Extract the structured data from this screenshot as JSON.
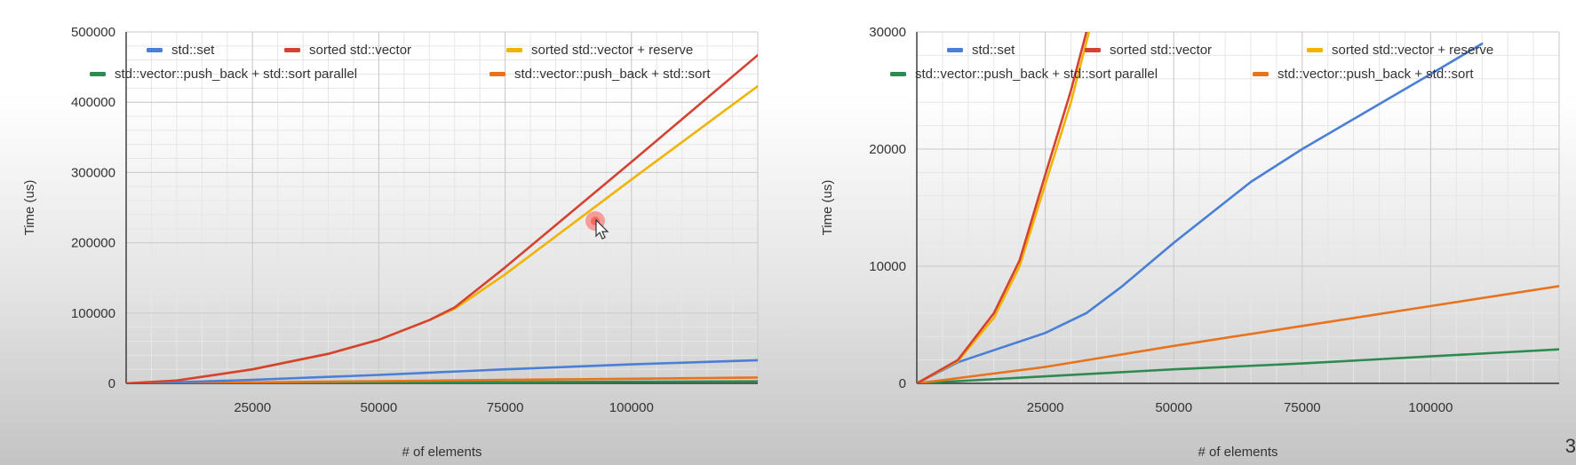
{
  "chart_data": [
    {
      "type": "line",
      "title": "",
      "xlabel": "# of elements",
      "ylabel": "Time (us)",
      "xlim": [
        0,
        125000
      ],
      "ylim": [
        0,
        500000
      ],
      "x_ticks": [
        25000,
        50000,
        75000,
        100000
      ],
      "x_tick_labels": [
        "25000",
        "50000",
        "75000",
        "100000"
      ],
      "y_ticks": [
        0,
        100000,
        200000,
        300000,
        400000,
        500000
      ],
      "y_tick_labels": [
        "0",
        "100000",
        "200000",
        "300000",
        "400000",
        "500000"
      ],
      "grid": true,
      "legend_position": "top-left",
      "series": [
        {
          "name": "std::set",
          "color": "#4a7fd6",
          "x": [
            0,
            10000,
            25000,
            50000,
            75000,
            100000,
            125000
          ],
          "y": [
            0,
            1500,
            5000,
            12000,
            20000,
            27000,
            33000
          ]
        },
        {
          "name": "sorted std::vector",
          "color": "#d44232",
          "x": [
            0,
            10000,
            25000,
            40000,
            50000,
            60000,
            65000,
            75000,
            100000,
            125000
          ],
          "y": [
            0,
            4000,
            20000,
            42000,
            62000,
            90000,
            108000,
            165000,
            315000,
            467000
          ]
        },
        {
          "name": "sorted std::vector + reserve",
          "color": "#f0b400",
          "x": [
            0,
            10000,
            25000,
            40000,
            50000,
            60000,
            65000,
            75000,
            100000,
            125000
          ],
          "y": [
            0,
            4000,
            20000,
            42000,
            62000,
            90000,
            106000,
            155000,
            290000,
            423000
          ]
        },
        {
          "name": "std::vector::push_back + std::sort parallel",
          "color": "#2e8b50",
          "x": [
            0,
            25000,
            50000,
            75000,
            100000,
            125000
          ],
          "y": [
            0,
            600,
            1200,
            1700,
            2300,
            2900
          ]
        },
        {
          "name": "std::vector::push_back + std::sort",
          "color": "#e8731e",
          "x": [
            0,
            25000,
            50000,
            75000,
            100000,
            125000
          ],
          "y": [
            0,
            1400,
            3200,
            4900,
            6600,
            8300
          ]
        }
      ]
    },
    {
      "type": "line",
      "title": "",
      "xlabel": "# of elements",
      "ylabel": "Time (us)",
      "xlim": [
        0,
        125000
      ],
      "ylim": [
        0,
        30000
      ],
      "x_ticks": [
        25000,
        50000,
        75000,
        100000
      ],
      "x_tick_labels": [
        "25000",
        "50000",
        "75000",
        "100000"
      ],
      "y_ticks": [
        0,
        10000,
        20000,
        30000
      ],
      "y_tick_labels": [
        "0",
        "10000",
        "20000",
        "30000"
      ],
      "grid": true,
      "legend_position": "top-left",
      "series": [
        {
          "name": "std::set",
          "color": "#4a7fd6",
          "x": [
            0,
            8000,
            25000,
            33000,
            40000,
            50000,
            65000,
            75000,
            100000,
            110000
          ],
          "y": [
            0,
            1800,
            4300,
            6000,
            8300,
            12000,
            17200,
            20000,
            26400,
            29000
          ]
        },
        {
          "name": "sorted std::vector",
          "color": "#d44232",
          "x": [
            0,
            8000,
            15000,
            20000,
            25000,
            30000,
            33000
          ],
          "y": [
            0,
            2000,
            6000,
            10500,
            17800,
            25000,
            30000
          ]
        },
        {
          "name": "sorted std::vector + reserve",
          "color": "#f0b400",
          "x": [
            0,
            8000,
            15000,
            20000,
            25000,
            30000,
            33500
          ],
          "y": [
            0,
            1900,
            5600,
            10000,
            17000,
            24000,
            30000
          ]
        },
        {
          "name": "std::vector::push_back + std::sort parallel",
          "color": "#2e8b50",
          "x": [
            0,
            25000,
            50000,
            75000,
            100000,
            125000
          ],
          "y": [
            0,
            600,
            1200,
            1700,
            2300,
            2900
          ]
        },
        {
          "name": "std::vector::push_back + std::sort",
          "color": "#e8731e",
          "x": [
            0,
            25000,
            50000,
            75000,
            100000,
            125000
          ],
          "y": [
            0,
            1400,
            3200,
            4900,
            6600,
            8300
          ]
        }
      ]
    }
  ],
  "slide": {
    "corner_text": "3"
  }
}
